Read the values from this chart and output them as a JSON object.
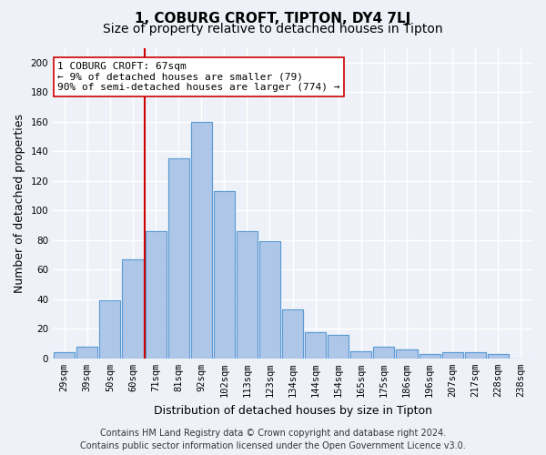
{
  "title": "1, COBURG CROFT, TIPTON, DY4 7LJ",
  "subtitle": "Size of property relative to detached houses in Tipton",
  "xlabel": "Distribution of detached houses by size in Tipton",
  "ylabel": "Number of detached properties",
  "bin_labels": [
    "29sqm",
    "39sqm",
    "50sqm",
    "60sqm",
    "71sqm",
    "81sqm",
    "92sqm",
    "102sqm",
    "113sqm",
    "123sqm",
    "134sqm",
    "144sqm",
    "154sqm",
    "165sqm",
    "175sqm",
    "186sqm",
    "196sqm",
    "207sqm",
    "217sqm",
    "228sqm",
    "238sqm"
  ],
  "bar_values": [
    4,
    8,
    39,
    67,
    86,
    135,
    160,
    113,
    86,
    79,
    33,
    18,
    16,
    5,
    8,
    6,
    3,
    4,
    4,
    3,
    0
  ],
  "bar_color": "#aec6e8",
  "bar_edge_color": "#5b9bd5",
  "ylim": [
    0,
    210
  ],
  "yticks": [
    0,
    20,
    40,
    60,
    80,
    100,
    120,
    140,
    160,
    180,
    200
  ],
  "property_label": "1 COBURG CROFT: 67sqm",
  "annotation_line1": "← 9% of detached houses are smaller (79)",
  "annotation_line2": "90% of semi-detached houses are larger (774) →",
  "vline_x": 3.5,
  "vline_color": "#cc0000",
  "annotation_box_color": "#ffffff",
  "annotation_box_edge_color": "#cc0000",
  "footer1": "Contains HM Land Registry data © Crown copyright and database right 2024.",
  "footer2": "Contains public sector information licensed under the Open Government Licence v3.0.",
  "background_color": "#eef2f8",
  "grid_color": "#ffffff",
  "title_fontsize": 11,
  "subtitle_fontsize": 10,
  "ylabel_fontsize": 9,
  "xlabel_fontsize": 9,
  "tick_fontsize": 7.5,
  "annotation_fontsize": 8,
  "footer_fontsize": 7
}
